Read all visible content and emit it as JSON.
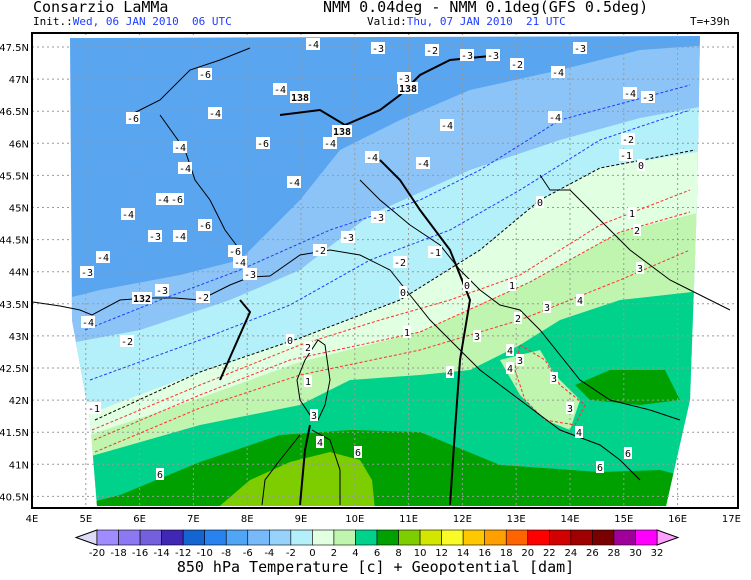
{
  "header": {
    "org": "Consarzio LaMMa",
    "model": "NMM 0.04deg - NMM 0.1deg(GFS 0.5deg)",
    "init_label": "Init.:",
    "init_value": "Wed, 06 JAN 2010  06 UTC",
    "valid_label": "Valid:",
    "valid_value": "Thu, 07 JAN 2010  21 UTC",
    "lead": "T=+39h"
  },
  "map": {
    "lon_ticks": [
      "4E",
      "5E",
      "6E",
      "7E",
      "8E",
      "9E",
      "10E",
      "11E",
      "12E",
      "13E",
      "14E",
      "15E",
      "16E",
      "17E"
    ],
    "lat_ticks": [
      "47.5N",
      "47N",
      "46.5N",
      "46N",
      "45.5N",
      "45N",
      "44.5N",
      "44N",
      "43.5N",
      "43N",
      "42.5N",
      "42N",
      "41.5N",
      "41N",
      "40.5N"
    ],
    "field": "850 hPa temperature shaded, geopotential contours",
    "contour_labels": [
      "-4",
      "-3",
      "-2",
      "-3",
      "-3",
      "-2",
      "-3",
      "-4",
      "-6",
      "-4",
      "138",
      "-3",
      "138",
      "-6",
      "-4",
      "-4",
      "-4",
      "-3",
      "138",
      "-4",
      "-6",
      "-4",
      "-4",
      "-4",
      "-4",
      "-2",
      "-1",
      "0",
      "-4",
      "-4",
      "-4",
      "-4",
      "-6",
      "-6",
      "-3",
      "-4",
      "-4",
      "-3",
      "-6",
      "-4",
      "-3",
      "-3",
      "-3",
      "-2",
      "-2",
      "-1",
      "132",
      "-3",
      "-2",
      "-4",
      "-2",
      "0",
      "0",
      "0",
      "0",
      "1",
      "1",
      "2",
      "3",
      "2",
      "3",
      "3",
      "1",
      "1",
      "4",
      "4",
      "3",
      "4",
      "3",
      "3",
      "4",
      "6",
      "6",
      "6",
      "6",
      "4",
      "3",
      "-1",
      "2",
      "4"
    ]
  },
  "colorbar": {
    "ticks": [
      "-20",
      "-18",
      "-16",
      "-14",
      "-12",
      "-10",
      "-8",
      "-6",
      "-4",
      "-2",
      "0",
      "2",
      "4",
      "6",
      "8",
      "10",
      "12",
      "14",
      "16",
      "18",
      "20",
      "22",
      "24",
      "26",
      "28",
      "30",
      "32"
    ],
    "colors": [
      "#a08cff",
      "#8c78f0",
      "#7460dc",
      "#4028b4",
      "#1464d2",
      "#2882f0",
      "#50a5f5",
      "#78b9fa",
      "#96d2fa",
      "#b4f0fa",
      "#e1ffe1",
      "#c0f5b0",
      "#00d28c",
      "#00a000",
      "#7dcd00",
      "#d2e600",
      "#fafa28",
      "#ffc800",
      "#ffa000",
      "#ff6400",
      "#ff0000",
      "#d20000",
      "#a00000",
      "#780000",
      "#a0009a",
      "#ff00ff"
    ],
    "under_color": "#dcdcf8",
    "over_color": "#ffa0ff",
    "title": "850 hPa Temperature [c] + Geopotential [dam]"
  }
}
